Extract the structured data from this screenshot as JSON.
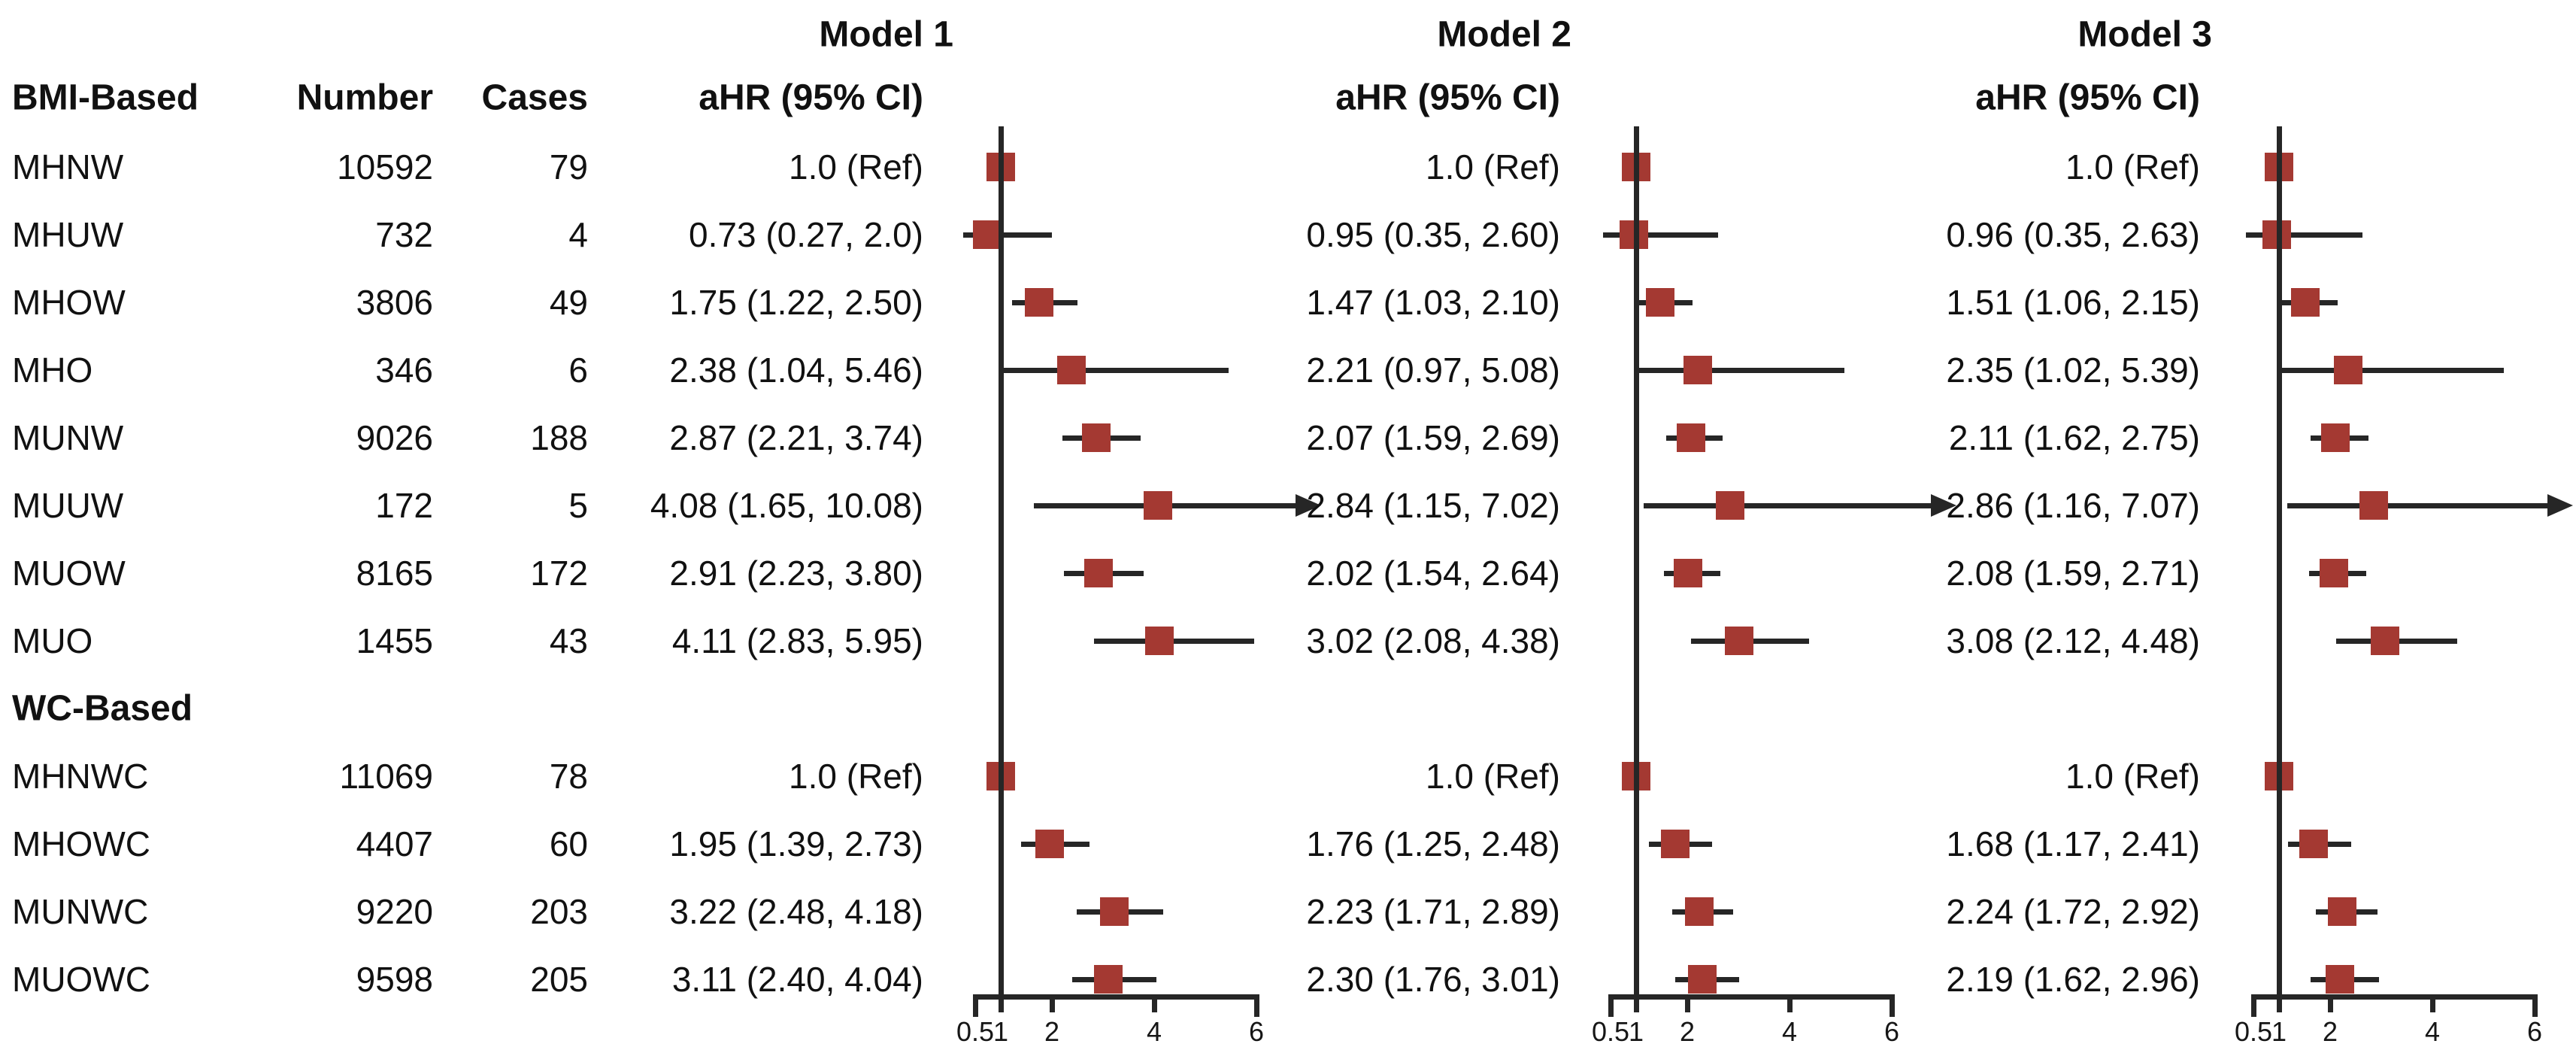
{
  "headers": {
    "model1": "Model 1",
    "model2": "Model 2",
    "model3": "Model 3",
    "ahr": "aHR (95% CI)",
    "group_bmi": "BMI-Based",
    "group_wc": "WC-Based",
    "number": "Number",
    "cases": "Cases"
  },
  "colors": {
    "marker": "#A43932",
    "line": "#262626",
    "text": "#111111",
    "background": "#FFFFFF"
  },
  "chart_data": {
    "type": "forest",
    "title": "",
    "xlabel": "",
    "axis": {
      "min": 0.5,
      "max": 6,
      "ref": 1,
      "ticks": [
        0.5,
        1,
        2,
        4,
        6
      ],
      "scale": "linear"
    },
    "model_names": [
      "Model 1",
      "Model 2",
      "Model 3"
    ],
    "value_column_header": "aHR (95% CI)",
    "sections": [
      {
        "label": "BMI-Based",
        "rows": [
          {
            "label": "MHNW",
            "number": "10592",
            "cases": "79",
            "models": [
              {
                "text": "1.0 (Ref)",
                "est": 1.0,
                "lo": null,
                "hi": null
              },
              {
                "text": "1.0 (Ref)",
                "est": 1.0,
                "lo": null,
                "hi": null
              },
              {
                "text": "1.0 (Ref)",
                "est": 1.0,
                "lo": null,
                "hi": null
              }
            ]
          },
          {
            "label": "MHUW",
            "number": "732",
            "cases": "4",
            "models": [
              {
                "text": "0.73 (0.27, 2.0)",
                "est": 0.73,
                "lo": 0.27,
                "hi": 2.0
              },
              {
                "text": "0.95 (0.35, 2.60)",
                "est": 0.95,
                "lo": 0.35,
                "hi": 2.6
              },
              {
                "text": "0.96 (0.35, 2.63)",
                "est": 0.96,
                "lo": 0.35,
                "hi": 2.63
              }
            ]
          },
          {
            "label": "MHOW",
            "number": "3806",
            "cases": "49",
            "models": [
              {
                "text": "1.75 (1.22, 2.50)",
                "est": 1.75,
                "lo": 1.22,
                "hi": 2.5
              },
              {
                "text": "1.47 (1.03, 2.10)",
                "est": 1.47,
                "lo": 1.03,
                "hi": 2.1
              },
              {
                "text": "1.51 (1.06, 2.15)",
                "est": 1.51,
                "lo": 1.06,
                "hi": 2.15
              }
            ]
          },
          {
            "label": "MHO",
            "number": "346",
            "cases": "6",
            "models": [
              {
                "text": "2.38 (1.04, 5.46)",
                "est": 2.38,
                "lo": 1.04,
                "hi": 5.46
              },
              {
                "text": "2.21 (0.97, 5.08)",
                "est": 2.21,
                "lo": 0.97,
                "hi": 5.08
              },
              {
                "text": "2.35 (1.02, 5.39)",
                "est": 2.35,
                "lo": 1.02,
                "hi": 5.39
              }
            ]
          },
          {
            "label": "MUNW",
            "number": "9026",
            "cases": "188",
            "models": [
              {
                "text": "2.87 (2.21, 3.74)",
                "est": 2.87,
                "lo": 2.21,
                "hi": 3.74
              },
              {
                "text": "2.07 (1.59, 2.69)",
                "est": 2.07,
                "lo": 1.59,
                "hi": 2.69
              },
              {
                "text": "2.11 (1.62, 2.75)",
                "est": 2.11,
                "lo": 1.62,
                "hi": 2.75
              }
            ]
          },
          {
            "label": "MUUW",
            "number": "172",
            "cases": "5",
            "models": [
              {
                "text": "4.08 (1.65, 10.08)",
                "est": 4.08,
                "lo": 1.65,
                "hi": 10.08
              },
              {
                "text": "2.84 (1.15, 7.02)",
                "est": 2.84,
                "lo": 1.15,
                "hi": 7.02
              },
              {
                "text": "2.86 (1.16, 7.07)",
                "est": 2.86,
                "lo": 1.16,
                "hi": 7.07
              }
            ]
          },
          {
            "label": "MUOW",
            "number": "8165",
            "cases": "172",
            "models": [
              {
                "text": "2.91 (2.23, 3.80)",
                "est": 2.91,
                "lo": 2.23,
                "hi": 3.8
              },
              {
                "text": "2.02 (1.54, 2.64)",
                "est": 2.02,
                "lo": 1.54,
                "hi": 2.64
              },
              {
                "text": "2.08 (1.59, 2.71)",
                "est": 2.08,
                "lo": 1.59,
                "hi": 2.71
              }
            ]
          },
          {
            "label": "MUO",
            "number": "1455",
            "cases": "43",
            "models": [
              {
                "text": "4.11 (2.83, 5.95)",
                "est": 4.11,
                "lo": 2.83,
                "hi": 5.95
              },
              {
                "text": "3.02 (2.08, 4.38)",
                "est": 3.02,
                "lo": 2.08,
                "hi": 4.38
              },
              {
                "text": "3.08 (2.12, 4.48)",
                "est": 3.08,
                "lo": 2.12,
                "hi": 4.48
              }
            ]
          }
        ]
      },
      {
        "label": "WC-Based",
        "rows": [
          {
            "label": "MHNWC",
            "number": "11069",
            "cases": "78",
            "models": [
              {
                "text": "1.0 (Ref)",
                "est": 1.0,
                "lo": null,
                "hi": null
              },
              {
                "text": "1.0 (Ref)",
                "est": 1.0,
                "lo": null,
                "hi": null
              },
              {
                "text": "1.0 (Ref)",
                "est": 1.0,
                "lo": null,
                "hi": null
              }
            ]
          },
          {
            "label": "MHOWC",
            "number": "4407",
            "cases": "60",
            "models": [
              {
                "text": "1.95 (1.39, 2.73)",
                "est": 1.95,
                "lo": 1.39,
                "hi": 2.73
              },
              {
                "text": "1.76 (1.25, 2.48)",
                "est": 1.76,
                "lo": 1.25,
                "hi": 2.48
              },
              {
                "text": "1.68 (1.17, 2.41)",
                "est": 1.68,
                "lo": 1.17,
                "hi": 2.41
              }
            ]
          },
          {
            "label": "MUNWC",
            "number": "9220",
            "cases": "203",
            "models": [
              {
                "text": "3.22 (2.48, 4.18)",
                "est": 3.22,
                "lo": 2.48,
                "hi": 4.18
              },
              {
                "text": "2.23 (1.71, 2.89)",
                "est": 2.23,
                "lo": 1.71,
                "hi": 2.89
              },
              {
                "text": "2.24 (1.72, 2.92)",
                "est": 2.24,
                "lo": 1.72,
                "hi": 2.92
              }
            ]
          },
          {
            "label": "MUOWC",
            "number": "9598",
            "cases": "205",
            "models": [
              {
                "text": "3.11 (2.40, 4.04)",
                "est": 3.11,
                "lo": 2.4,
                "hi": 4.04
              },
              {
                "text": "2.30 (1.76, 3.01)",
                "est": 2.3,
                "lo": 1.76,
                "hi": 3.01
              },
              {
                "text": "2.19 (1.62, 2.96)",
                "est": 2.19,
                "lo": 1.62,
                "hi": 2.96
              }
            ]
          }
        ]
      }
    ]
  }
}
